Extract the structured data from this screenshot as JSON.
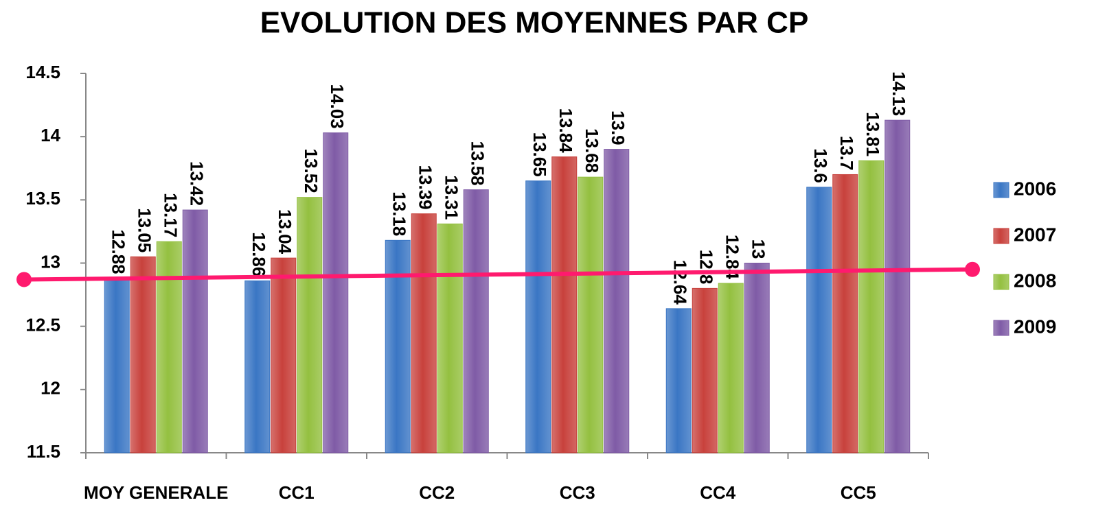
{
  "chart_data": {
    "type": "bar",
    "title": "EVOLUTION DES MOYENNES PAR CP",
    "categories": [
      "MOY GENERALE",
      "CC1",
      "CC2",
      "CC3",
      "CC4",
      "CC5"
    ],
    "series": [
      {
        "name": "2006",
        "color": "#3a76c4",
        "values": [
          12.88,
          12.86,
          13.18,
          13.65,
          12.64,
          13.6
        ]
      },
      {
        "name": "2007",
        "color": "#c8413c",
        "values": [
          13.05,
          13.04,
          13.39,
          13.84,
          12.8,
          13.7
        ]
      },
      {
        "name": "2008",
        "color": "#94c040",
        "values": [
          13.17,
          13.52,
          13.31,
          13.68,
          12.84,
          13.81
        ]
      },
      {
        "name": "2009",
        "color": "#7f5ba6",
        "values": [
          13.42,
          14.03,
          13.58,
          13.9,
          13,
          14.13
        ]
      }
    ],
    "trend_line": {
      "color": "#ff1a6e",
      "values": [
        12.87,
        12.95
      ]
    },
    "ylim": [
      11.5,
      14.5
    ],
    "yticks": [
      11.5,
      12,
      12.5,
      13,
      13.5,
      14,
      14.5
    ],
    "legend": "right"
  }
}
